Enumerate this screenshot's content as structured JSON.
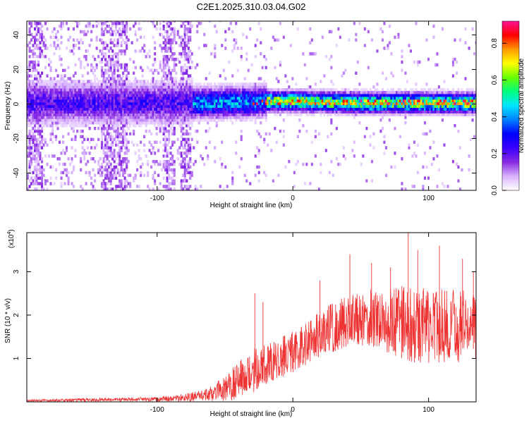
{
  "figure_title": "C2E1.2025.310.03.04.G02",
  "chart_data": [
    {
      "type": "heatmap",
      "xlabel": "Height of straight line (km)",
      "ylabel": "Frequency (Hz)",
      "xlim": [
        -196,
        135
      ],
      "ylim": [
        -50,
        48
      ],
      "xticks": [
        -100,
        0,
        100
      ],
      "yticks": [
        -40,
        -20,
        0,
        20,
        40
      ],
      "xtick_labels": [
        "-100",
        "0",
        "100"
      ],
      "ytick_labels": [
        "-40",
        "-20",
        "0",
        "20",
        "40"
      ],
      "ridge": [
        {
          "x": -196,
          "y": 0
        },
        {
          "x": -150,
          "y": 0
        },
        {
          "x": -100,
          "y": 0
        },
        {
          "x": -60,
          "y": 0
        },
        {
          "x": -20,
          "y": 1
        },
        {
          "x": 0,
          "y": 1
        },
        {
          "x": 50,
          "y": 0
        },
        {
          "x": 100,
          "y": 0
        },
        {
          "x": 135,
          "y": 0
        }
      ],
      "colorbar": {
        "label": "Normalized spectral amplitude",
        "ticks": [
          0.0,
          0.2,
          0.4,
          0.6,
          0.8
        ],
        "tick_labels": [
          "0.0",
          "0.2",
          "0.4",
          "0.6",
          "0.8"
        ],
        "range": [
          0,
          0.92
        ],
        "colors": [
          "#ffffff",
          "#d9b3ff",
          "#8a2be2",
          "#3a00ff",
          "#0000ff",
          "#0080ff",
          "#00e5ff",
          "#00ff80",
          "#66ff00",
          "#ffff00",
          "#ff9900",
          "#ff0000",
          "#ff1493"
        ]
      }
    },
    {
      "type": "line",
      "xlabel": "Height of straight line (km)",
      "ylabel": "SNR (10 * v/v)",
      "yscale_label": "(x10",
      "yscale_exp": "4",
      "yscale_close": ")",
      "xlim": [
        -196,
        135
      ],
      "ylim": [
        0,
        3.9
      ],
      "xticks": [
        -100,
        0,
        100
      ],
      "yticks": [
        1,
        2,
        3
      ],
      "xtick_labels": [
        "-100",
        "0",
        "100"
      ],
      "ytick_labels": [
        "1",
        "2",
        "3"
      ],
      "line_color": "#ee3333",
      "envelope": [
        {
          "x": -196,
          "mean": 0.03,
          "amp": 0.02
        },
        {
          "x": -140,
          "mean": 0.05,
          "amp": 0.04
        },
        {
          "x": -100,
          "mean": 0.06,
          "amp": 0.05
        },
        {
          "x": -80,
          "mean": 0.1,
          "amp": 0.1
        },
        {
          "x": -65,
          "mean": 0.15,
          "amp": 0.12
        },
        {
          "x": -50,
          "mean": 0.3,
          "amp": 0.3
        },
        {
          "x": -35,
          "mean": 0.6,
          "amp": 0.5
        },
        {
          "x": -25,
          "mean": 0.8,
          "amp": 0.55
        },
        {
          "x": -10,
          "mean": 1.0,
          "amp": 0.5
        },
        {
          "x": 0,
          "mean": 1.15,
          "amp": 0.5
        },
        {
          "x": 10,
          "mean": 1.35,
          "amp": 0.5
        },
        {
          "x": 25,
          "mean": 1.65,
          "amp": 0.55
        },
        {
          "x": 40,
          "mean": 1.85,
          "amp": 0.6
        },
        {
          "x": 60,
          "mean": 1.95,
          "amp": 0.7
        },
        {
          "x": 80,
          "mean": 1.85,
          "amp": 0.85
        },
        {
          "x": 100,
          "mean": 1.7,
          "amp": 0.9
        },
        {
          "x": 120,
          "mean": 1.75,
          "amp": 0.85
        },
        {
          "x": 135,
          "mean": 1.7,
          "amp": 0.8
        }
      ],
      "spikes": [
        {
          "x": -28,
          "y": 2.5
        },
        {
          "x": -22,
          "y": 2.3
        },
        {
          "x": 20,
          "y": 2.8
        },
        {
          "x": 42,
          "y": 3.4
        },
        {
          "x": 58,
          "y": 3.2
        },
        {
          "x": 72,
          "y": 3.1
        },
        {
          "x": 85,
          "y": 3.9
        },
        {
          "x": 92,
          "y": 3.5
        },
        {
          "x": 108,
          "y": 3.6
        },
        {
          "x": 125,
          "y": 3.3
        },
        {
          "x": 133,
          "y": 3.0
        }
      ]
    }
  ]
}
